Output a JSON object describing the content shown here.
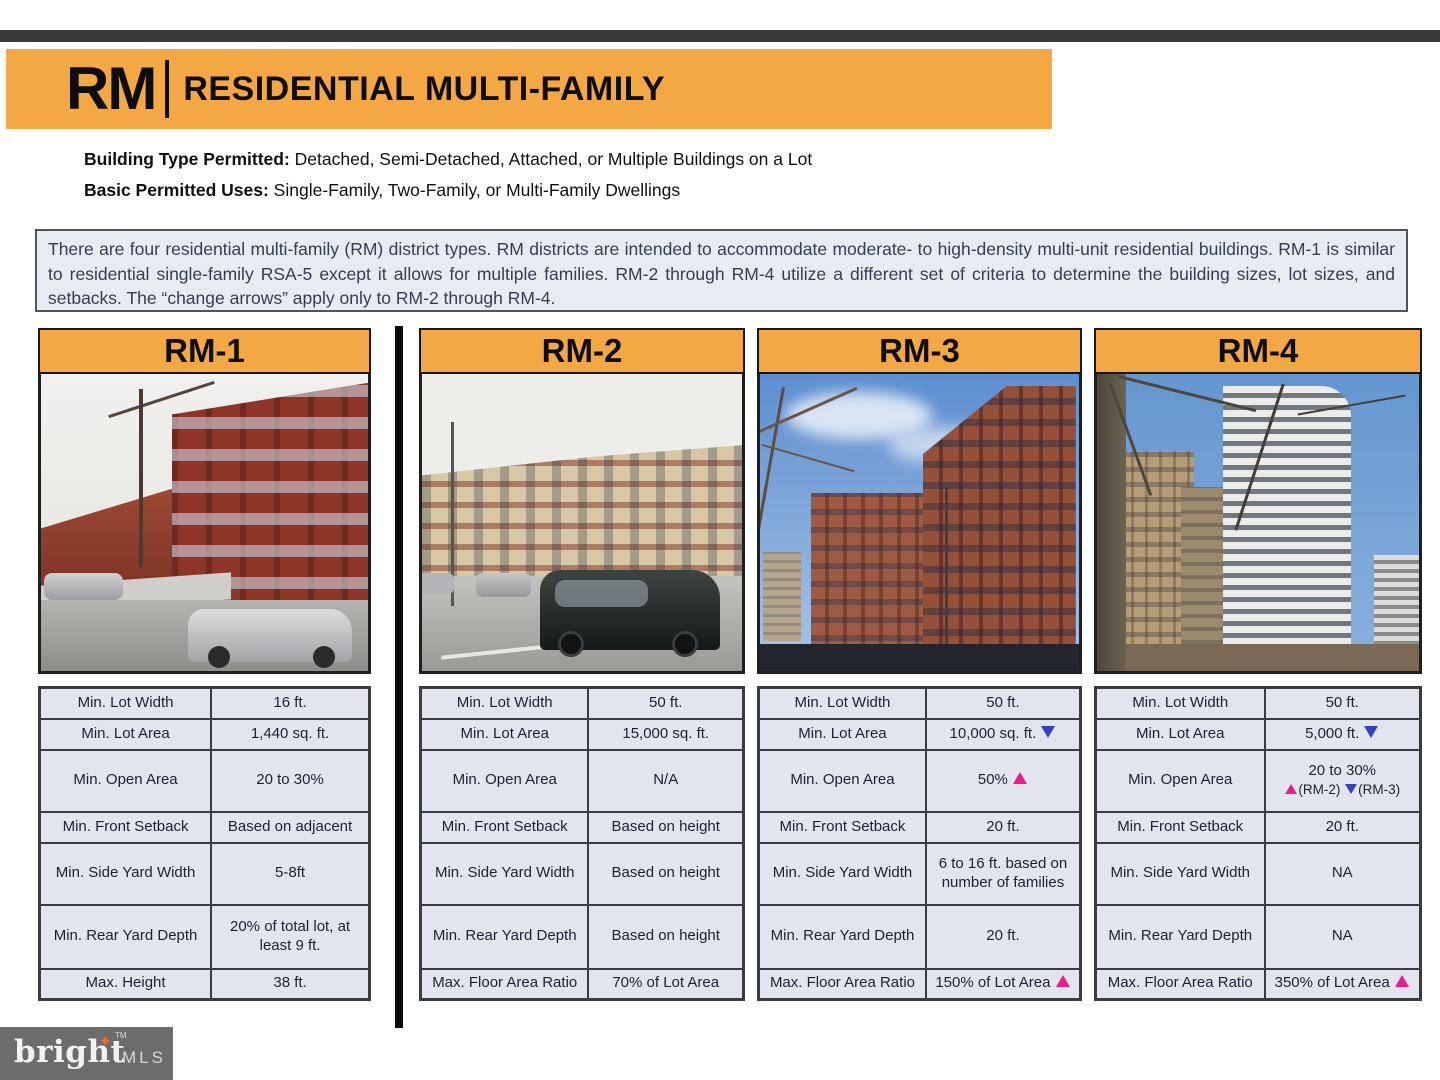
{
  "banner": {
    "code": "RM",
    "title": "RESIDENTIAL MULTI-FAMILY"
  },
  "permitted": [
    {
      "label": "Building Type Permitted:",
      "text": " Detached, Semi-Detached, Attached, or Multiple Buildings on a Lot"
    },
    {
      "label": "Basic Permitted Uses:",
      "text": " Single-Family, Two-Family, or Multi-Family Dwellings"
    }
  ],
  "description": "There are four residential multi-family (RM) district types. RM districts are intended to accommodate moderate- to high-density multi-unit residential buildings. RM-1 is similar to residential single-family RSA-5 except it allows for multiple families. RM-2 through RM-4 utilize a different set of criteria to determine the building sizes, lot sizes, and setbacks. The “change arrows” apply only to RM-2 through RM-4.",
  "colors": {
    "accent_orange": "#F4A843",
    "arrow_up_pink": "#EC1C8E",
    "arrow_down_blue": "#3143BE",
    "table_bg": "#E2E5EE",
    "footer_gray": "#6C6C6C"
  },
  "columns": [
    {
      "name": "RM-1",
      "photo_alt": "brick rowhouses street with parked cars",
      "rows": [
        {
          "label": "Min. Lot Width",
          "value": [
            {
              "t": "16 ft."
            }
          ]
        },
        {
          "label": "Min. Lot Area",
          "value": [
            {
              "t": "1,440 sq. ft."
            }
          ]
        },
        {
          "label": "Min. Open Area",
          "value": [
            {
              "t": "20 to 30%"
            }
          ]
        },
        {
          "label": "Min. Front Setback",
          "value": [
            {
              "t": "Based on adjacent"
            }
          ]
        },
        {
          "label": "Min. Side Yard Width",
          "value": [
            {
              "t": "5-8ft"
            }
          ]
        },
        {
          "label": "Min. Rear Yard Depth",
          "value": [
            {
              "t": "20% of total lot, at least 9 ft."
            }
          ]
        },
        {
          "label": "Max. Height",
          "value": [
            {
              "t": "38 ft."
            }
          ]
        }
      ]
    },
    {
      "name": "RM-2",
      "photo_alt": "mid-rise apartment building with minivan on street",
      "rows": [
        {
          "label": "Min. Lot Width",
          "value": [
            {
              "t": "50 ft."
            }
          ]
        },
        {
          "label": "Min. Lot Area",
          "value": [
            {
              "t": "15,000 sq. ft."
            }
          ]
        },
        {
          "label": "Min. Open Area",
          "value": [
            {
              "t": "N/A"
            }
          ]
        },
        {
          "label": "Min. Front Setback",
          "value": [
            {
              "t": "Based on height"
            }
          ]
        },
        {
          "label": "Min. Side Yard Width",
          "value": [
            {
              "t": "Based on height"
            }
          ]
        },
        {
          "label": "Min. Rear Yard Depth",
          "value": [
            {
              "t": "Based on height"
            }
          ]
        },
        {
          "label": "Max. Floor Area Ratio",
          "value": [
            {
              "t": "70% of Lot Area"
            }
          ]
        }
      ]
    },
    {
      "name": "RM-3",
      "photo_alt": "red brick high-rise apartment complex under blue sky",
      "rows": [
        {
          "label": "Min. Lot Width",
          "value": [
            {
              "t": "50 ft."
            }
          ]
        },
        {
          "label": "Min. Lot Area",
          "value": [
            {
              "t": "10,000 sq. ft. "
            },
            {
              "arrow": "down"
            }
          ]
        },
        {
          "label": "Min. Open Area",
          "value": [
            {
              "t": "50% "
            },
            {
              "arrow": "up"
            }
          ]
        },
        {
          "label": "Min. Front Setback",
          "value": [
            {
              "t": "20 ft."
            }
          ]
        },
        {
          "label": "Min. Side Yard Width",
          "value": [
            {
              "t": "6 to 16 ft. based on number of families"
            }
          ]
        },
        {
          "label": "Min. Rear Yard Depth",
          "value": [
            {
              "t": "20 ft."
            }
          ]
        },
        {
          "label": "Max. Floor Area Ratio",
          "value": [
            {
              "t": "150% of Lot Area "
            },
            {
              "arrow": "up"
            }
          ]
        }
      ]
    },
    {
      "name": "RM-4",
      "photo_alt": "tall towers seen through park trees",
      "rows": [
        {
          "label": "Min. Lot Width",
          "value": [
            {
              "t": "50 ft."
            }
          ]
        },
        {
          "label": "Min. Lot Area",
          "value": [
            {
              "t": "5,000 ft. "
            },
            {
              "arrow": "down"
            }
          ]
        },
        {
          "label": "Min. Open Area",
          "value": [
            {
              "t": "20 to 30%"
            },
            {
              "br": true
            },
            {
              "arrow": "up",
              "sm": true
            },
            {
              "t": "(RM-2) ",
              "sm": true
            },
            {
              "arrow": "down",
              "sm": true
            },
            {
              "t": "(RM-3)",
              "sm": true
            }
          ]
        },
        {
          "label": "Min. Front Setback",
          "value": [
            {
              "t": "20 ft."
            }
          ]
        },
        {
          "label": "Min. Side Yard Width",
          "value": [
            {
              "t": "NA"
            }
          ]
        },
        {
          "label": "Min. Rear Yard Depth",
          "value": [
            {
              "t": "NA"
            }
          ]
        },
        {
          "label": "Max. Floor Area Ratio",
          "value": [
            {
              "t": "350% of Lot Area "
            },
            {
              "arrow": "up"
            }
          ]
        }
      ]
    }
  ],
  "footer": {
    "brand": "bright",
    "star": "✦",
    "tm": "TM",
    "suffix": "MLS"
  }
}
